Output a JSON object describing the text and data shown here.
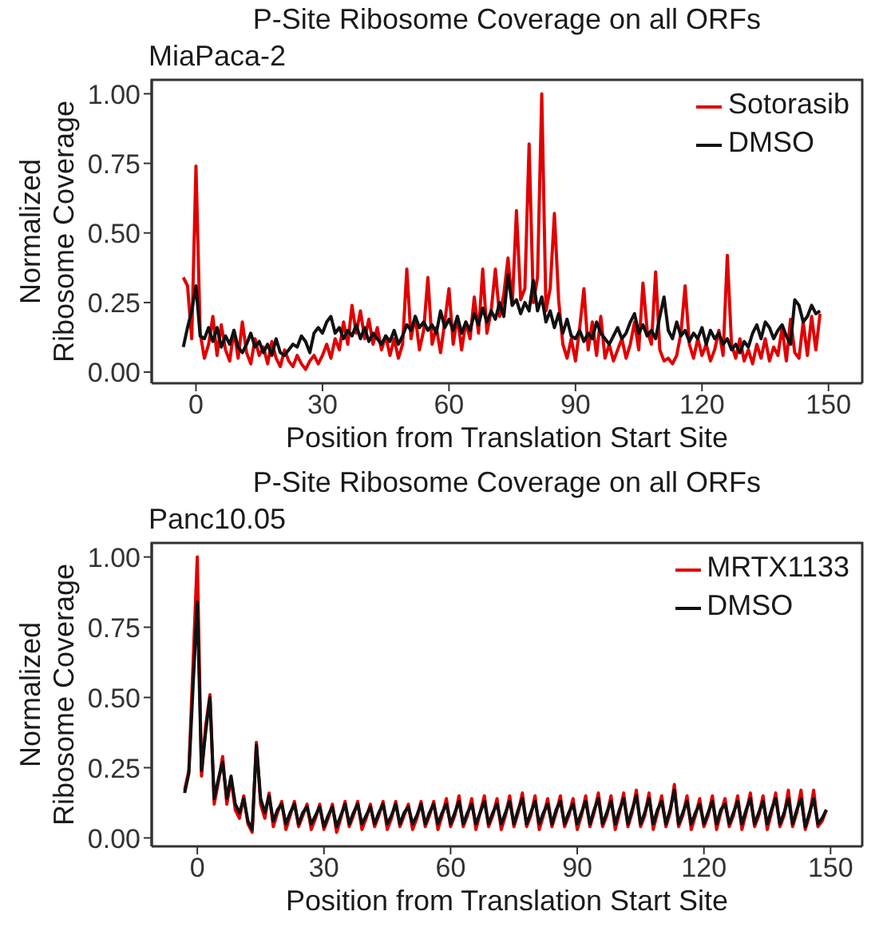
{
  "chart_data": [
    {
      "type": "line",
      "title": "P-Site Ribosome Coverage on all ORFs",
      "subtitle": "MiaPaca-2",
      "xlabel": "Position from Translation Start Site",
      "ylabel": "Normalized Ribosome Coverage",
      "x": [
        -3,
        -2,
        -1,
        0,
        1,
        2,
        3,
        4,
        5,
        6,
        7,
        8,
        9,
        10,
        11,
        12,
        13,
        14,
        15,
        16,
        17,
        18,
        19,
        20,
        21,
        22,
        23,
        24,
        25,
        26,
        27,
        28,
        29,
        30,
        31,
        32,
        33,
        34,
        35,
        36,
        37,
        38,
        39,
        40,
        41,
        42,
        43,
        44,
        45,
        46,
        47,
        48,
        49,
        50,
        51,
        52,
        53,
        54,
        55,
        56,
        57,
        58,
        59,
        60,
        61,
        62,
        63,
        64,
        65,
        66,
        67,
        68,
        69,
        70,
        71,
        72,
        73,
        74,
        75,
        76,
        77,
        78,
        79,
        80,
        81,
        82,
        83,
        84,
        85,
        86,
        87,
        88,
        89,
        90,
        91,
        92,
        93,
        94,
        95,
        96,
        97,
        98,
        99,
        100,
        101,
        102,
        103,
        104,
        105,
        106,
        107,
        108,
        109,
        110,
        111,
        112,
        113,
        114,
        115,
        116,
        117,
        118,
        119,
        120,
        121,
        122,
        123,
        124,
        125,
        126,
        127,
        128,
        129,
        130,
        131,
        132,
        133,
        134,
        135,
        136,
        137,
        138,
        139,
        140,
        141,
        142,
        143,
        144,
        145,
        146,
        147,
        148
      ],
      "series": [
        {
          "name": "Sotorasib",
          "color": "#e00000",
          "values": [
            0.34,
            0.31,
            0.12,
            0.74,
            0.14,
            0.05,
            0.1,
            0.2,
            0.06,
            0.17,
            0.08,
            0.04,
            0.15,
            0.05,
            0.18,
            0.07,
            0.03,
            0.12,
            0.06,
            0.09,
            0.03,
            0.11,
            0.05,
            0.02,
            0.08,
            0.04,
            0.02,
            0.06,
            0.03,
            0.01,
            0.04,
            0.06,
            0.03,
            0.06,
            0.1,
            0.05,
            0.12,
            0.08,
            0.18,
            0.1,
            0.24,
            0.14,
            0.22,
            0.12,
            0.19,
            0.1,
            0.16,
            0.08,
            0.13,
            0.06,
            0.12,
            0.05,
            0.1,
            0.37,
            0.12,
            0.2,
            0.08,
            0.15,
            0.34,
            0.1,
            0.16,
            0.07,
            0.18,
            0.3,
            0.1,
            0.2,
            0.08,
            0.18,
            0.12,
            0.27,
            0.14,
            0.37,
            0.14,
            0.22,
            0.37,
            0.2,
            0.28,
            0.41,
            0.24,
            0.58,
            0.26,
            0.3,
            0.82,
            0.25,
            0.34,
            1.0,
            0.22,
            0.3,
            0.57,
            0.26,
            0.1,
            0.05,
            0.12,
            0.04,
            0.16,
            0.3,
            0.08,
            0.18,
            0.06,
            0.2,
            0.05,
            0.1,
            0.04,
            0.08,
            0.12,
            0.05,
            0.1,
            0.18,
            0.08,
            0.32,
            0.15,
            0.1,
            0.36,
            0.08,
            0.04,
            0.05,
            0.03,
            0.06,
            0.14,
            0.31,
            0.1,
            0.05,
            0.12,
            0.06,
            0.1,
            0.04,
            0.08,
            0.15,
            0.06,
            0.42,
            0.1,
            0.05,
            0.12,
            0.04,
            0.08,
            0.03,
            0.1,
            0.05,
            0.12,
            0.04,
            0.09,
            0.06,
            0.16,
            0.04,
            0.19,
            0.07,
            0.05,
            0.18,
            0.06,
            0.2,
            0.08,
            0.21
          ]
        },
        {
          "name": "DMSO",
          "color": "#111111",
          "values": [
            0.09,
            0.16,
            0.22,
            0.31,
            0.13,
            0.12,
            0.16,
            0.11,
            0.16,
            0.09,
            0.13,
            0.1,
            0.15,
            0.09,
            0.07,
            0.1,
            0.14,
            0.09,
            0.11,
            0.07,
            0.1,
            0.06,
            0.12,
            0.07,
            0.06,
            0.08,
            0.1,
            0.09,
            0.13,
            0.11,
            0.07,
            0.14,
            0.16,
            0.14,
            0.18,
            0.2,
            0.14,
            0.16,
            0.12,
            0.15,
            0.13,
            0.17,
            0.12,
            0.16,
            0.11,
            0.14,
            0.12,
            0.1,
            0.13,
            0.11,
            0.15,
            0.1,
            0.13,
            0.17,
            0.15,
            0.2,
            0.16,
            0.18,
            0.15,
            0.17,
            0.14,
            0.22,
            0.16,
            0.19,
            0.15,
            0.2,
            0.14,
            0.18,
            0.15,
            0.21,
            0.17,
            0.23,
            0.18,
            0.22,
            0.19,
            0.25,
            0.2,
            0.35,
            0.24,
            0.26,
            0.21,
            0.25,
            0.22,
            0.33,
            0.22,
            0.27,
            0.18,
            0.22,
            0.16,
            0.21,
            0.14,
            0.19,
            0.13,
            0.12,
            0.15,
            0.11,
            0.14,
            0.12,
            0.18,
            0.14,
            0.12,
            0.1,
            0.13,
            0.16,
            0.12,
            0.14,
            0.18,
            0.21,
            0.14,
            0.17,
            0.13,
            0.15,
            0.12,
            0.2,
            0.27,
            0.15,
            0.12,
            0.18,
            0.13,
            0.15,
            0.11,
            0.14,
            0.12,
            0.16,
            0.1,
            0.15,
            0.12,
            0.14,
            0.1,
            0.12,
            0.08,
            0.1,
            0.07,
            0.11,
            0.09,
            0.14,
            0.17,
            0.12,
            0.18,
            0.16,
            0.12,
            0.15,
            0.17,
            0.13,
            0.1,
            0.26,
            0.24,
            0.18,
            0.2,
            0.24,
            0.21,
            0.22
          ]
        }
      ],
      "xlim": [
        -10.5,
        158
      ],
      "ylim": [
        -0.04,
        1.05
      ],
      "xticks": [
        0,
        30,
        60,
        90,
        120,
        150
      ],
      "yticks": [
        {
          "value": 0,
          "label": "0.00"
        },
        {
          "value": 0.25,
          "label": "0.25"
        },
        {
          "value": 0.5,
          "label": "0.50"
        },
        {
          "value": 0.75,
          "label": "0.75"
        },
        {
          "value": 1,
          "label": "1.00"
        }
      ],
      "legend": "top right"
    },
    {
      "type": "line",
      "title": "P-Site Ribosome Coverage on all ORFs",
      "subtitle": "Panc10.05",
      "xlabel": "Position from Translation Start Site",
      "ylabel": "Normalized Ribosome Coverage",
      "x": [
        -3,
        -2,
        -1,
        0,
        1,
        2,
        3,
        4,
        5,
        6,
        7,
        8,
        9,
        10,
        11,
        12,
        13,
        14,
        15,
        16,
        17,
        18,
        19,
        20,
        21,
        22,
        23,
        24,
        25,
        26,
        27,
        28,
        29,
        30,
        31,
        32,
        33,
        34,
        35,
        36,
        37,
        38,
        39,
        40,
        41,
        42,
        43,
        44,
        45,
        46,
        47,
        48,
        49,
        50,
        51,
        52,
        53,
        54,
        55,
        56,
        57,
        58,
        59,
        60,
        61,
        62,
        63,
        64,
        65,
        66,
        67,
        68,
        69,
        70,
        71,
        72,
        73,
        74,
        75,
        76,
        77,
        78,
        79,
        80,
        81,
        82,
        83,
        84,
        85,
        86,
        87,
        88,
        89,
        90,
        91,
        92,
        93,
        94,
        95,
        96,
        97,
        98,
        99,
        100,
        101,
        102,
        103,
        104,
        105,
        106,
        107,
        108,
        109,
        110,
        111,
        112,
        113,
        114,
        115,
        116,
        117,
        118,
        119,
        120,
        121,
        122,
        123,
        124,
        125,
        126,
        127,
        128,
        129,
        130,
        131,
        132,
        133,
        134,
        135,
        136,
        137,
        138,
        139,
        140,
        141,
        142,
        143,
        144,
        145,
        146,
        147,
        148,
        149
      ],
      "series": [
        {
          "name": "MRTX1133",
          "color": "#e00000",
          "values": [
            0.17,
            0.24,
            0.62,
            1.0,
            0.22,
            0.4,
            0.51,
            0.12,
            0.2,
            0.29,
            0.12,
            0.21,
            0.1,
            0.07,
            0.15,
            0.05,
            0.02,
            0.34,
            0.12,
            0.07,
            0.16,
            0.04,
            0.09,
            0.13,
            0.03,
            0.08,
            0.13,
            0.04,
            0.08,
            0.12,
            0.03,
            0.07,
            0.12,
            0.03,
            0.07,
            0.12,
            0.02,
            0.07,
            0.13,
            0.04,
            0.08,
            0.13,
            0.03,
            0.07,
            0.12,
            0.04,
            0.08,
            0.13,
            0.03,
            0.07,
            0.13,
            0.04,
            0.08,
            0.12,
            0.03,
            0.07,
            0.13,
            0.04,
            0.08,
            0.13,
            0.03,
            0.08,
            0.14,
            0.04,
            0.08,
            0.15,
            0.04,
            0.08,
            0.14,
            0.03,
            0.09,
            0.15,
            0.04,
            0.08,
            0.14,
            0.03,
            0.08,
            0.15,
            0.04,
            0.09,
            0.16,
            0.04,
            0.08,
            0.15,
            0.03,
            0.08,
            0.14,
            0.04,
            0.09,
            0.15,
            0.04,
            0.08,
            0.14,
            0.03,
            0.08,
            0.15,
            0.04,
            0.09,
            0.16,
            0.04,
            0.08,
            0.15,
            0.03,
            0.09,
            0.16,
            0.04,
            0.09,
            0.17,
            0.04,
            0.08,
            0.16,
            0.03,
            0.09,
            0.15,
            0.04,
            0.09,
            0.19,
            0.04,
            0.08,
            0.15,
            0.03,
            0.08,
            0.14,
            0.04,
            0.08,
            0.15,
            0.03,
            0.09,
            0.14,
            0.04,
            0.08,
            0.15,
            0.03,
            0.09,
            0.16,
            0.04,
            0.08,
            0.15,
            0.03,
            0.09,
            0.16,
            0.04,
            0.08,
            0.17,
            0.04,
            0.09,
            0.17,
            0.03,
            0.08,
            0.17,
            0.04,
            0.06,
            0.1
          ]
        },
        {
          "name": "DMSO",
          "color": "#111111",
          "values": [
            0.16,
            0.23,
            0.54,
            0.84,
            0.24,
            0.38,
            0.5,
            0.14,
            0.21,
            0.27,
            0.14,
            0.22,
            0.12,
            0.09,
            0.14,
            0.06,
            0.03,
            0.33,
            0.14,
            0.09,
            0.15,
            0.06,
            0.1,
            0.12,
            0.05,
            0.09,
            0.12,
            0.05,
            0.09,
            0.11,
            0.05,
            0.08,
            0.11,
            0.04,
            0.08,
            0.11,
            0.04,
            0.08,
            0.12,
            0.05,
            0.09,
            0.12,
            0.05,
            0.08,
            0.11,
            0.05,
            0.09,
            0.12,
            0.05,
            0.08,
            0.12,
            0.05,
            0.09,
            0.11,
            0.05,
            0.08,
            0.12,
            0.05,
            0.09,
            0.12,
            0.05,
            0.09,
            0.12,
            0.05,
            0.09,
            0.13,
            0.05,
            0.09,
            0.12,
            0.05,
            0.09,
            0.13,
            0.05,
            0.09,
            0.12,
            0.05,
            0.09,
            0.13,
            0.05,
            0.1,
            0.14,
            0.05,
            0.09,
            0.13,
            0.05,
            0.09,
            0.12,
            0.05,
            0.1,
            0.13,
            0.05,
            0.09,
            0.12,
            0.05,
            0.09,
            0.13,
            0.05,
            0.1,
            0.14,
            0.05,
            0.09,
            0.13,
            0.05,
            0.1,
            0.14,
            0.05,
            0.1,
            0.15,
            0.05,
            0.09,
            0.14,
            0.05,
            0.1,
            0.13,
            0.05,
            0.1,
            0.17,
            0.05,
            0.09,
            0.13,
            0.05,
            0.09,
            0.12,
            0.05,
            0.09,
            0.13,
            0.05,
            0.1,
            0.12,
            0.05,
            0.09,
            0.13,
            0.05,
            0.1,
            0.14,
            0.05,
            0.09,
            0.13,
            0.05,
            0.1,
            0.14,
            0.05,
            0.09,
            0.14,
            0.05,
            0.1,
            0.14,
            0.04,
            0.09,
            0.14,
            0.05,
            0.07,
            0.1
          ]
        }
      ],
      "xlim": [
        -10.8,
        157.5
      ],
      "ylim": [
        -0.03,
        1.05
      ],
      "xticks": [
        0,
        30,
        60,
        90,
        120,
        150
      ],
      "yticks": [
        {
          "value": 0,
          "label": "0.00"
        },
        {
          "value": 0.25,
          "label": "0.25"
        },
        {
          "value": 0.5,
          "label": "0.50"
        },
        {
          "value": 0.75,
          "label": "0.75"
        },
        {
          "value": 1,
          "label": "1.00"
        }
      ],
      "legend": "top right"
    }
  ]
}
